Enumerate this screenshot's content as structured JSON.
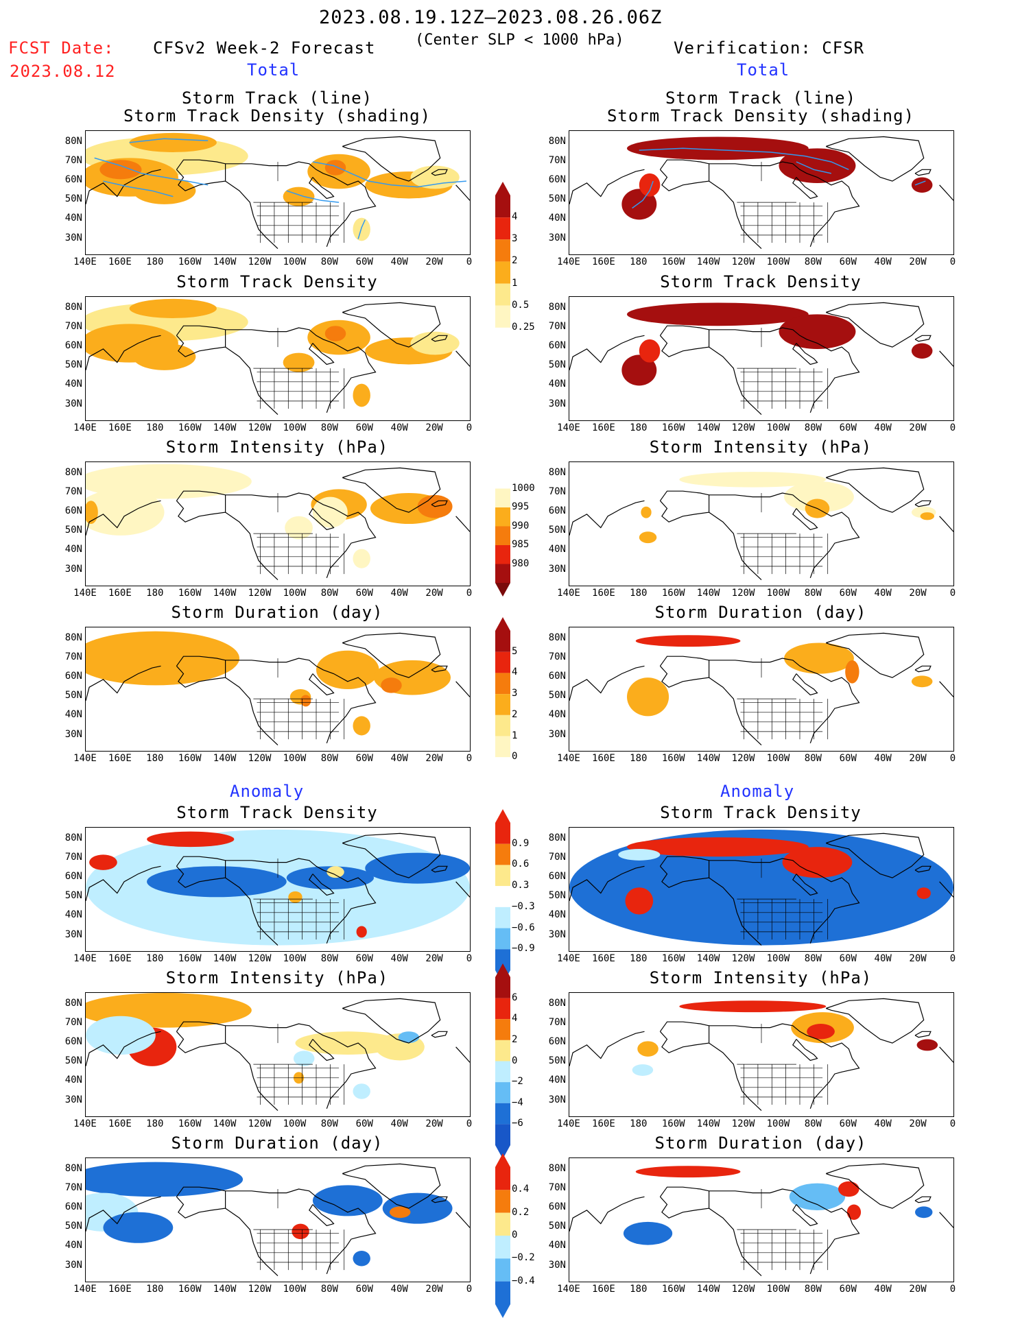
{
  "header": {
    "period": "2023.08.19.12Z–2023.08.26.06Z",
    "subtitle": "(Center SLP < 1000 hPa)",
    "fcst_label": "FCST Date:",
    "fcst_date": "2023.08.12",
    "left_title": "CFSv2 Week-2 Forecast",
    "right_title": "Verification: CFSR",
    "total_label": "Total",
    "anomaly_label": "Anomaly"
  },
  "panel_titles": {
    "track_line": "Storm Track (line)",
    "track_shading": "Storm Track Density (shading)",
    "density": "Storm Track Density",
    "intensity": "Storm Intensity (hPa)",
    "duration": "Storm Duration (day)"
  },
  "axes": {
    "lat_ticks": [
      "80N",
      "70N",
      "60N",
      "50N",
      "40N",
      "30N"
    ],
    "lon_ticks": [
      "140E",
      "160E",
      "180",
      "160W",
      "140W",
      "120W",
      "100W",
      "80W",
      "60W",
      "40W",
      "20W",
      "0"
    ]
  },
  "colorbars": {
    "density_total": [
      "4",
      "3",
      "2",
      "1",
      "0.5",
      "0.25"
    ],
    "intensity_total": [
      "1000",
      "995",
      "990",
      "985",
      "980"
    ],
    "duration_total": [
      "5",
      "4",
      "3",
      "2",
      "1",
      "0"
    ],
    "density_anom": [
      "0.9",
      "0.6",
      "0.3",
      "−0.3",
      "−0.6",
      "−0.9"
    ],
    "intensity_anom": [
      "6",
      "4",
      "2",
      "0",
      "−2",
      "−4",
      "−6"
    ],
    "duration_anom": [
      "0.4",
      "0.2",
      "0",
      "−0.2",
      "−0.4"
    ]
  },
  "colors": {
    "dark_red": "#a50f0f",
    "red": "#e8250e",
    "orange": "#f57c0d",
    "amber": "#fbad1c",
    "yellow": "#fde98c",
    "pale": "#fff6c2",
    "light_blue": "#bfeeff",
    "blue_mid": "#65bdf5",
    "blue": "#1e70d6",
    "track": "#3399ee"
  }
}
